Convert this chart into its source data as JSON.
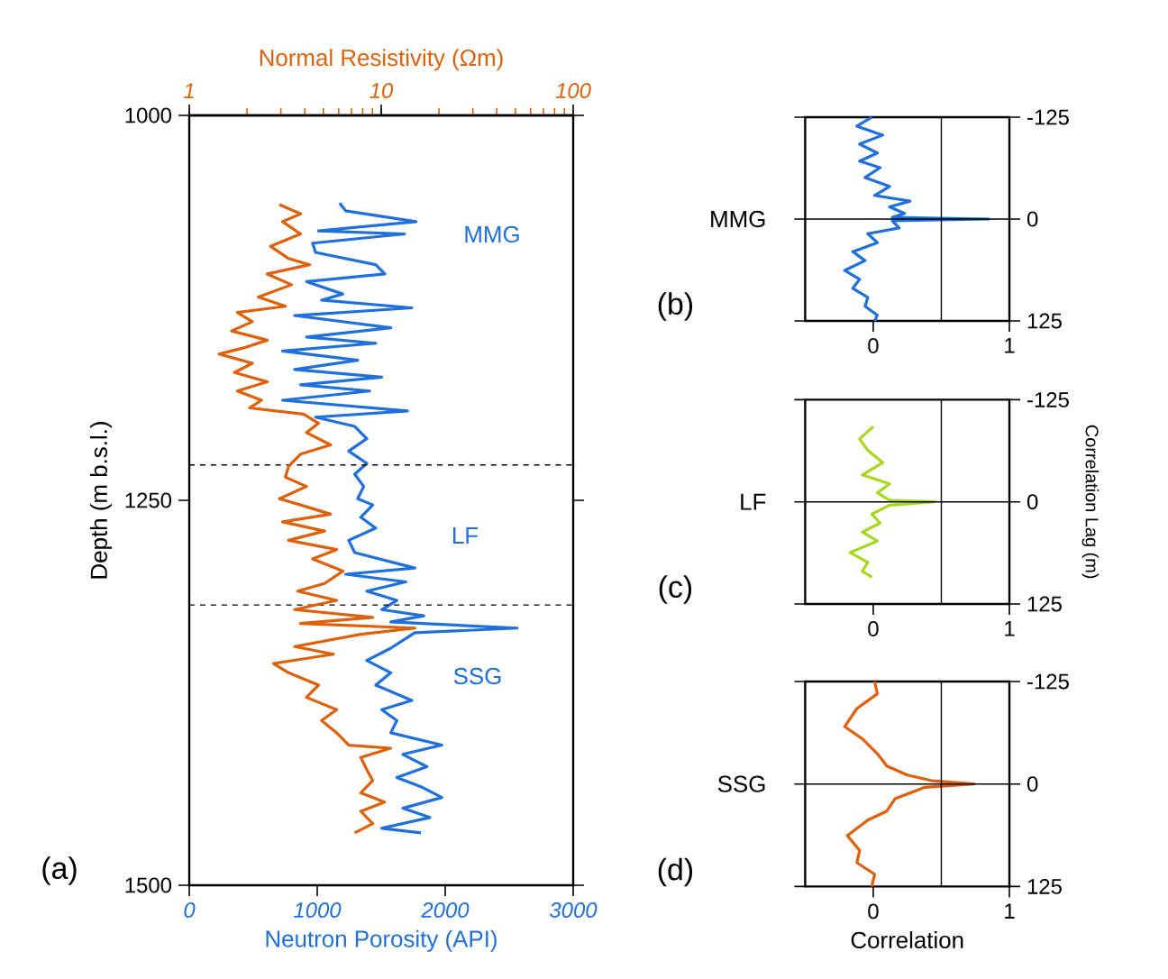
{
  "chart_data": [
    {
      "type": "line",
      "xlabel": "Neutron Porosity (API)",
      "x2label": "Normal Resistivity (Ωm)",
      "ylabel": "Depth (m b.s.l.)",
      "xlim": [
        0,
        3000
      ],
      "xticks": [
        0,
        1000,
        2000,
        3000
      ],
      "x2lim": [
        1,
        100
      ],
      "x2ticks": [
        1,
        10,
        100
      ],
      "log": "x2",
      "ylim": [
        1500,
        1000
      ],
      "yticks": [
        1000,
        1250,
        1500
      ],
      "series": [
        {
          "color": "#1f6fdc",
          "x": [
            1175,
            1222,
            1772,
            1010,
            1683,
            964,
            987,
            1457,
            1528,
            917,
            1199,
            1034,
            1739,
            823,
            1575,
            917,
            1457,
            729,
            1316,
            823,
            1504,
            870,
            1410,
            729,
            1706,
            987,
            1293,
            1387,
            1246,
            1387,
            1293,
            1363,
            1316,
            1434,
            1340,
            1457,
            1246,
            1293,
            1763,
            1222,
            1692,
            1387,
            1622,
            1504,
            1833,
            1575,
            2562,
            1763,
            1669,
            1575,
            1387,
            1575,
            1457,
            1739,
            1504,
            1622,
            1575,
            1974,
            1669,
            1857,
            1622,
            1810,
            1974,
            1669,
            1880,
            1504,
            1810
          ],
          "values": [
            1057,
            1062,
            1069,
            1075,
            1077,
            1083,
            1089,
            1097,
            1103,
            1108,
            1116,
            1120,
            1125,
            1130,
            1138,
            1144,
            1148,
            1153,
            1159,
            1165,
            1170,
            1175,
            1179,
            1185,
            1192,
            1196,
            1202,
            1210,
            1218,
            1226,
            1233,
            1241,
            1249,
            1253,
            1261,
            1268,
            1276,
            1284,
            1294,
            1298,
            1303,
            1309,
            1315,
            1321,
            1325,
            1329,
            1333,
            1336,
            1341,
            1346,
            1354,
            1362,
            1370,
            1380,
            1386,
            1393,
            1401,
            1409,
            1415,
            1423,
            1430,
            1436,
            1443,
            1450,
            1456,
            1463,
            1466
          ]
        },
        {
          "color": "#e0600a",
          "axis": "x2",
          "x": [
            2.95,
            3.8,
            3.06,
            3.8,
            2.65,
            3.29,
            4.24,
            2.55,
            3.41,
            2.29,
            3.17,
            1.78,
            2.13,
            1.66,
            2.55,
            1.92,
            1.43,
            2.13,
            1.72,
            2.55,
            1.78,
            2.38,
            2.06,
            3.94,
            4.72,
            4.08,
            5.45,
            3.8,
            3.29,
            3.17,
            4.08,
            2.95,
            3.8,
            5.45,
            3.06,
            5.07,
            3.29,
            5.86,
            4.39,
            6.31,
            5.07,
            3.67,
            5.86,
            3.54,
            9.03,
            3.8,
            15,
            7.83,
            3.54,
            5.64,
            2.75,
            3.29,
            4.72,
            4.08,
            5.86,
            4.89,
            5.86,
            6.78,
            11.2,
            7.83,
            8.42,
            9.03,
            7.83,
            10.4,
            7.83,
            9.03,
            7.28
          ],
          "values": [
            1058,
            1064,
            1069,
            1077,
            1085,
            1093,
            1097,
            1103,
            1110,
            1118,
            1124,
            1128,
            1134,
            1140,
            1146,
            1151,
            1155,
            1161,
            1167,
            1173,
            1179,
            1185,
            1190,
            1194,
            1200,
            1206,
            1214,
            1220,
            1228,
            1235,
            1241,
            1249,
            1253,
            1259,
            1264,
            1270,
            1276,
            1282,
            1288,
            1296,
            1304,
            1309,
            1315,
            1321,
            1326,
            1330,
            1333,
            1337,
            1345,
            1350,
            1356,
            1362,
            1370,
            1378,
            1386,
            1393,
            1401,
            1409,
            1411,
            1417,
            1425,
            1432,
            1440,
            1446,
            1452,
            1460,
            1466
          ]
        }
      ],
      "ref_lines": [
        {
          "axis": "y",
          "value": 1227,
          "line_style": "dashed"
        },
        {
          "axis": "y",
          "value": 1318,
          "line_style": "dashed"
        }
      ],
      "annotations": [
        "(a)",
        "MMG",
        "LF",
        "SSG"
      ]
    },
    {
      "type": "line",
      "xlim": [
        -0.5,
        1
      ],
      "xticks": [
        0,
        1
      ],
      "ylim": [
        125,
        -125
      ],
      "yticks": [
        -125,
        0,
        125
      ],
      "series": [
        {
          "color": "#1f6fdc",
          "x": [
            -0.01,
            -0.12,
            0.07,
            -0.1,
            0.03,
            -0.1,
            0.05,
            -0.06,
            0.12,
            0.01,
            0.27,
            0.12,
            0.23,
            0.14,
            0.85,
            0.14,
            0.19,
            -0.04,
            0.03,
            -0.15,
            -0.06,
            -0.21,
            -0.1,
            -0.15,
            -0.04,
            -0.06,
            0.03,
            0.01
          ],
          "values": [
            -125,
            -114,
            -103,
            -92,
            -81,
            -71,
            -63,
            -51,
            -40,
            -29,
            -22,
            -15,
            -7,
            -2,
            0,
            2,
            11,
            18,
            29,
            40,
            51,
            63,
            74,
            85,
            96,
            107,
            118,
            125
          ]
        }
      ],
      "ref_lines": [
        {
          "axis": "x",
          "value": 0.5
        },
        {
          "axis": "y",
          "value": 0
        }
      ],
      "annotations": [
        "(b)",
        "MMG"
      ]
    },
    {
      "type": "line",
      "xlim": [
        -0.5,
        1
      ],
      "xticks": [
        0,
        1
      ],
      "ylim": [
        125,
        -125
      ],
      "yticks": [
        -125,
        0,
        125
      ],
      "ylabel": "Correlation Lag (m)",
      "series": [
        {
          "color": "#a5d81e",
          "x": [
            0.0,
            -0.1,
            -0.04,
            0.07,
            -0.08,
            0.12,
            0.03,
            0.12,
            0.45,
            0.12,
            -0.01,
            0.05,
            -0.08,
            0.03,
            -0.17,
            -0.04,
            -0.08,
            -0.01
          ],
          "values": [
            -92,
            -77,
            -63,
            -48,
            -33,
            -22,
            -11,
            -2,
            0,
            4,
            15,
            26,
            37,
            48,
            62,
            74,
            85,
            92
          ]
        }
      ],
      "ref_lines": [
        {
          "axis": "x",
          "value": 0.5
        },
        {
          "axis": "y",
          "value": 0
        }
      ],
      "annotations": [
        "(c)",
        "LF"
      ]
    },
    {
      "type": "line",
      "xlim": [
        -0.5,
        1
      ],
      "xticks": [
        0,
        1
      ],
      "ylim": [
        125,
        -125
      ],
      "yticks": [
        -125,
        0,
        125
      ],
      "xlabel": "Correlation",
      "series": [
        {
          "color": "#e0600a",
          "x": [
            0.01,
            0.03,
            -0.12,
            -0.21,
            -0.08,
            0.03,
            0.1,
            0.25,
            0.43,
            0.74,
            0.38,
            0.16,
            0.1,
            -0.04,
            -0.19,
            -0.1,
            -0.12,
            0.01,
            -0.01
          ],
          "values": [
            -125,
            -110,
            -92,
            -70,
            -55,
            -37,
            -22,
            -11,
            -4,
            0,
            4,
            18,
            33,
            44,
            63,
            81,
            96,
            110,
            125
          ]
        }
      ],
      "ref_lines": [
        {
          "axis": "x",
          "value": 0.5
        },
        {
          "axis": "y",
          "value": 0
        }
      ],
      "annotations": [
        "(d)",
        "SSG"
      ]
    }
  ]
}
